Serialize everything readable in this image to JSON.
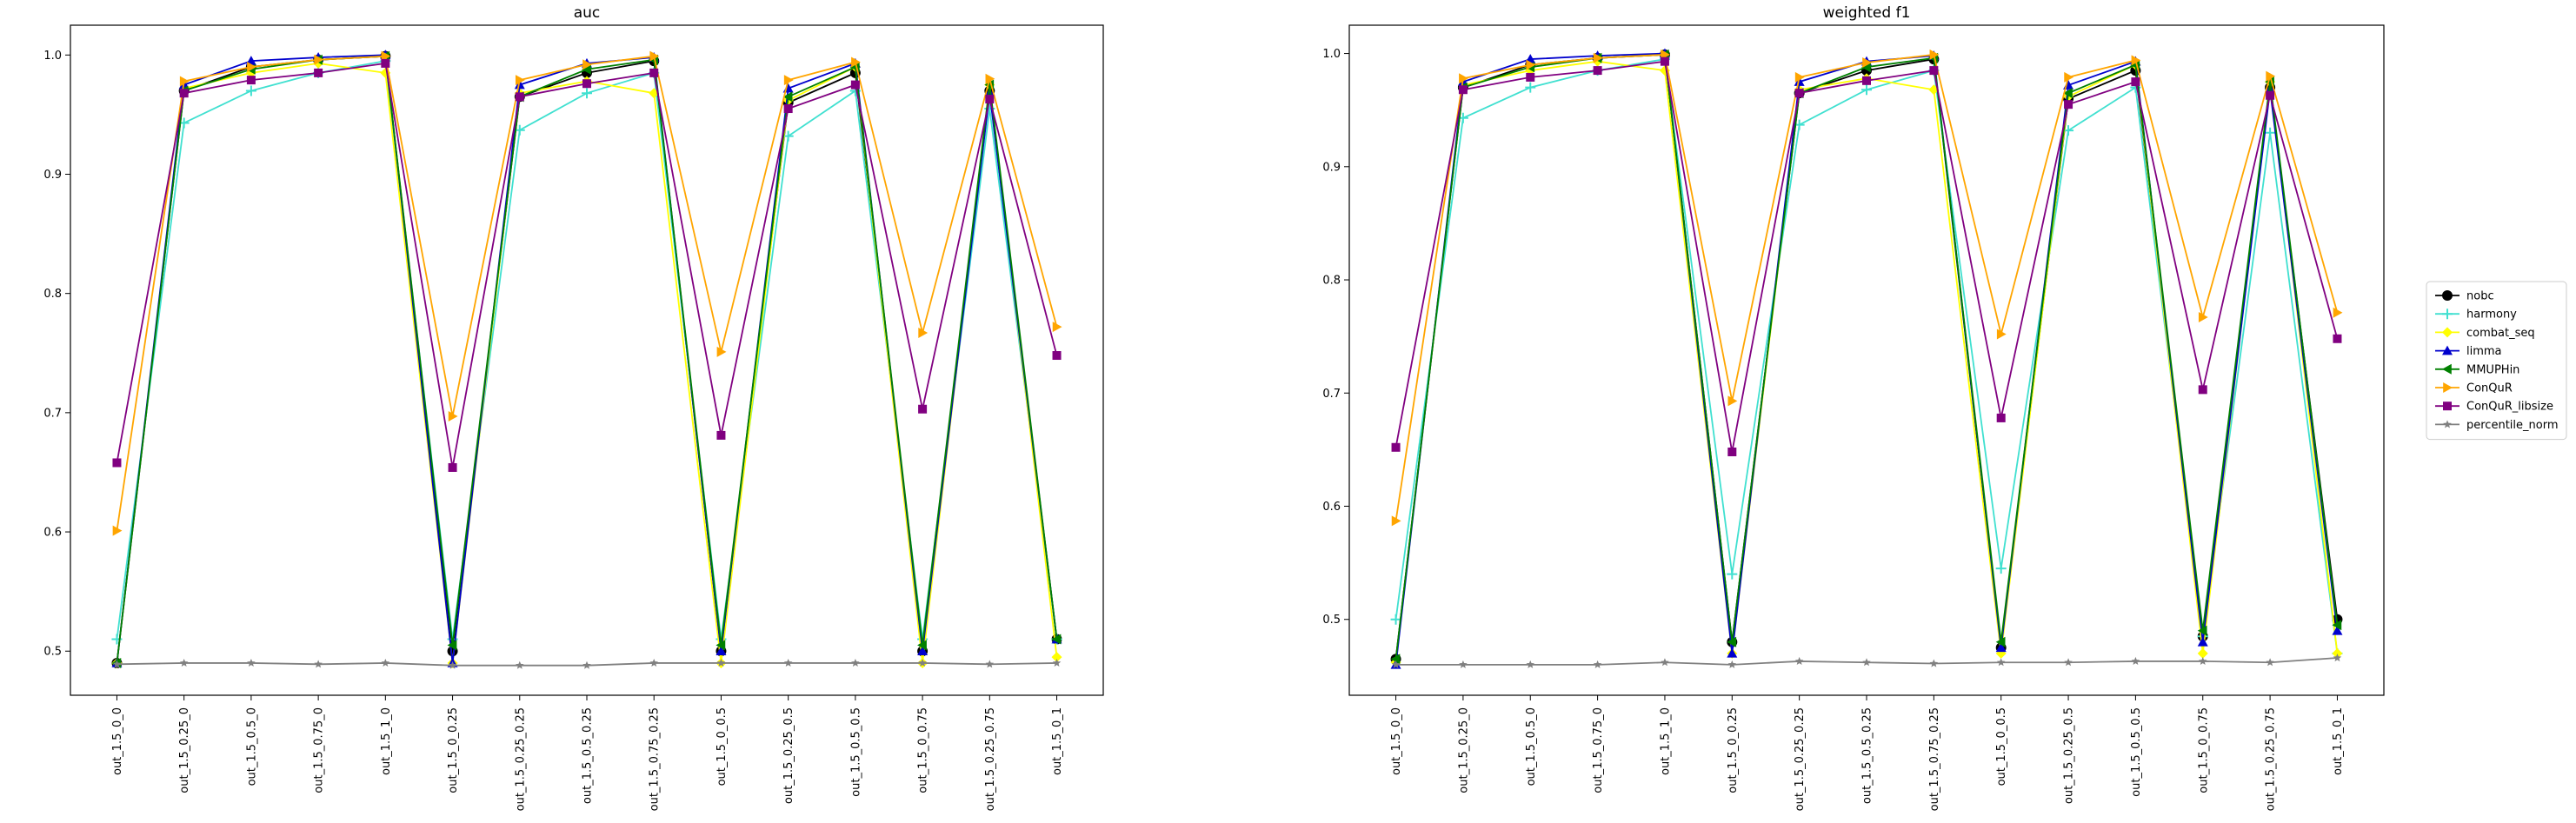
{
  "chart_data": [
    {
      "type": "line",
      "title": "auc",
      "ylim": [
        0.463,
        1.025
      ],
      "yticks": [
        "0.5",
        "0.6",
        "0.7",
        "0.8",
        "0.9",
        "1.0"
      ],
      "categories": [
        "out_1.5_0_0",
        "out_1.5_0.25_0",
        "out_1.5_0.5_0",
        "out_1.5_0.75_0",
        "out_1.5_1_0",
        "out_1.5_0_0.25",
        "out_1.5_0.25_0.25",
        "out_1.5_0.5_0.25",
        "out_1.5_0.75_0.25",
        "out_1.5_0_0.5",
        "out_1.5_0.25_0.5",
        "out_1.5_0.5_0.5",
        "out_1.5_0_0.75",
        "out_1.5_0.25_0.75",
        "out_1.5_0_1"
      ],
      "series": [
        {
          "name": "nobc",
          "values": [
            0.49,
            0.97,
            0.99,
            0.996,
            0.999,
            0.5,
            0.965,
            0.985,
            0.995,
            0.5,
            0.96,
            0.985,
            0.5,
            0.97,
            0.51
          ]
        },
        {
          "name": "harmony",
          "values": [
            0.51,
            0.943,
            0.97,
            0.985,
            0.995,
            0.51,
            0.937,
            0.968,
            0.985,
            0.51,
            0.932,
            0.97,
            0.51,
            0.955,
            0.51
          ]
        },
        {
          "name": "combat_seq",
          "values": [
            0.49,
            0.972,
            0.985,
            0.993,
            0.985,
            0.49,
            0.968,
            0.978,
            0.968,
            0.49,
            0.962,
            0.99,
            0.49,
            0.975,
            0.495
          ]
        },
        {
          "name": "limma",
          "values": [
            0.49,
            0.975,
            0.995,
            0.998,
            1.0,
            0.49,
            0.975,
            0.993,
            0.998,
            0.5,
            0.972,
            0.993,
            0.5,
            0.968,
            0.51
          ]
        },
        {
          "name": "MMUPHin",
          "values": [
            0.49,
            0.97,
            0.988,
            0.996,
            0.999,
            0.505,
            0.965,
            0.988,
            0.996,
            0.505,
            0.965,
            0.99,
            0.505,
            0.975,
            0.51
          ]
        },
        {
          "name": "ConQuR",
          "values": [
            0.601,
            0.978,
            0.99,
            0.996,
            0.999,
            0.697,
            0.979,
            0.992,
            0.999,
            0.751,
            0.979,
            0.994,
            0.767,
            0.98,
            0.772
          ]
        },
        {
          "name": "ConQuR_libsize",
          "values": [
            0.658,
            0.968,
            0.979,
            0.985,
            0.993,
            0.654,
            0.965,
            0.976,
            0.985,
            0.681,
            0.955,
            0.975,
            0.703,
            0.963,
            0.748
          ]
        },
        {
          "name": "percentile_norm",
          "values": [
            0.489,
            0.49,
            0.49,
            0.489,
            0.49,
            0.488,
            0.488,
            0.488,
            0.49,
            0.49,
            0.49,
            0.49,
            0.49,
            0.489,
            0.49
          ]
        }
      ]
    },
    {
      "type": "line",
      "title": "weighted f1",
      "ylim": [
        0.433,
        1.025
      ],
      "yticks": [
        "0.5",
        "0.6",
        "0.7",
        "0.8",
        "0.9",
        "1.0"
      ],
      "categories": [
        "out_1.5_0_0",
        "out_1.5_0.25_0",
        "out_1.5_0.5_0",
        "out_1.5_0.75_0",
        "out_1.5_1_0",
        "out_1.5_0_0.25",
        "out_1.5_0.25_0.25",
        "out_1.5_0.5_0.25",
        "out_1.5_0.75_0.25",
        "out_1.5_0_0.5",
        "out_1.5_0.25_0.5",
        "out_1.5_0.5_0.5",
        "out_1.5_0_0.75",
        "out_1.5_0.25_0.75",
        "out_1.5_0_1"
      ],
      "series": [
        {
          "name": "nobc",
          "values": [
            0.465,
            0.97,
            0.99,
            0.996,
            0.999,
            0.48,
            0.965,
            0.985,
            0.995,
            0.475,
            0.96,
            0.985,
            0.485,
            0.97,
            0.5
          ]
        },
        {
          "name": "harmony",
          "values": [
            0.5,
            0.943,
            0.97,
            0.985,
            0.995,
            0.54,
            0.937,
            0.968,
            0.985,
            0.545,
            0.932,
            0.97,
            0.485,
            0.93,
            0.47
          ]
        },
        {
          "name": "combat_seq",
          "values": [
            0.462,
            0.972,
            0.985,
            0.993,
            0.985,
            0.47,
            0.968,
            0.978,
            0.968,
            0.47,
            0.962,
            0.99,
            0.47,
            0.975,
            0.47
          ]
        },
        {
          "name": "limma",
          "values": [
            0.46,
            0.975,
            0.995,
            0.998,
            1.0,
            0.47,
            0.975,
            0.993,
            0.998,
            0.475,
            0.972,
            0.993,
            0.48,
            0.968,
            0.49
          ]
        },
        {
          "name": "MMUPHin",
          "values": [
            0.465,
            0.97,
            0.988,
            0.996,
            0.999,
            0.48,
            0.965,
            0.988,
            0.996,
            0.48,
            0.965,
            0.99,
            0.49,
            0.975,
            0.495
          ]
        },
        {
          "name": "ConQuR",
          "values": [
            0.587,
            0.978,
            0.99,
            0.996,
            0.999,
            0.693,
            0.979,
            0.992,
            0.999,
            0.752,
            0.979,
            0.994,
            0.767,
            0.98,
            0.771
          ]
        },
        {
          "name": "ConQuR_libsize",
          "values": [
            0.652,
            0.968,
            0.979,
            0.985,
            0.993,
            0.648,
            0.965,
            0.976,
            0.985,
            0.678,
            0.955,
            0.975,
            0.703,
            0.963,
            0.748
          ]
        },
        {
          "name": "percentile_norm",
          "values": [
            0.46,
            0.46,
            0.46,
            0.46,
            0.462,
            0.46,
            0.463,
            0.462,
            0.461,
            0.462,
            0.462,
            0.463,
            0.463,
            0.462,
            0.466
          ]
        }
      ]
    }
  ],
  "legend": {
    "placement": "right",
    "entries": [
      {
        "name": "nobc",
        "color": "#000000",
        "marker": "circle"
      },
      {
        "name": "harmony",
        "color": "#40e0d0",
        "marker": "plus"
      },
      {
        "name": "combat_seq",
        "color": "#ffff00",
        "marker": "diamond"
      },
      {
        "name": "limma",
        "color": "#0000cd",
        "marker": "triangle-up"
      },
      {
        "name": "MMUPHin",
        "color": "#008000",
        "marker": "triangle-left"
      },
      {
        "name": "ConQuR",
        "color": "#ffa500",
        "marker": "triangle-right"
      },
      {
        "name": "ConQuR_libsize",
        "color": "#800080",
        "marker": "square"
      },
      {
        "name": "percentile_norm",
        "color": "#808080",
        "marker": "star"
      }
    ]
  }
}
